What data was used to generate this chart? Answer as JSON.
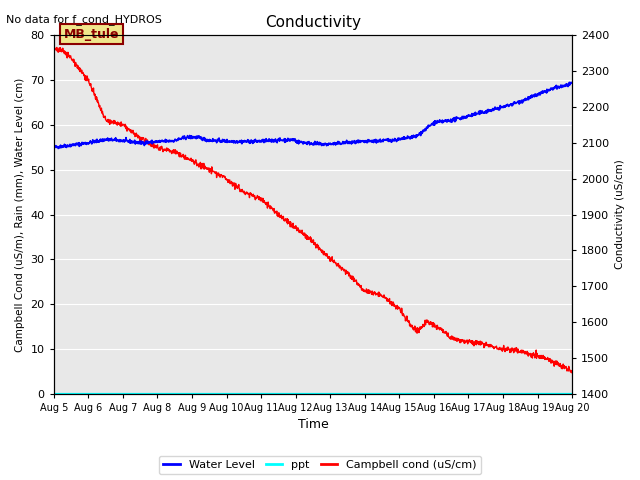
{
  "title": "Conductivity",
  "top_left_text": "No data for f_cond_HYDROS",
  "xlabel": "Time",
  "ylabel_left": "Campbell Cond (uS/m), Rain (mm), Water Level (cm)",
  "ylabel_right": "Conductivity (uS/cm)",
  "ylim_left": [
    0,
    80
  ],
  "ylim_right": [
    1400,
    2400
  ],
  "x_tick_labels": [
    "Aug 5",
    "Aug 6",
    "Aug 7",
    "Aug 8",
    "Aug 9",
    "Aug 10",
    "Aug 11",
    "Aug 12",
    "Aug 13",
    "Aug 14",
    "Aug 15",
    "Aug 16",
    "Aug 17",
    "Aug 18",
    "Aug 19",
    "Aug 20"
  ],
  "background_color": "#e8e8e8",
  "legend_entries": [
    "Water Level",
    "ppt",
    "Campbell cond (uS/cm)"
  ],
  "annotation_box_text": "MB_tule",
  "annotation_box_color": "#f0e68c",
  "annotation_box_edge": "#8B0000"
}
